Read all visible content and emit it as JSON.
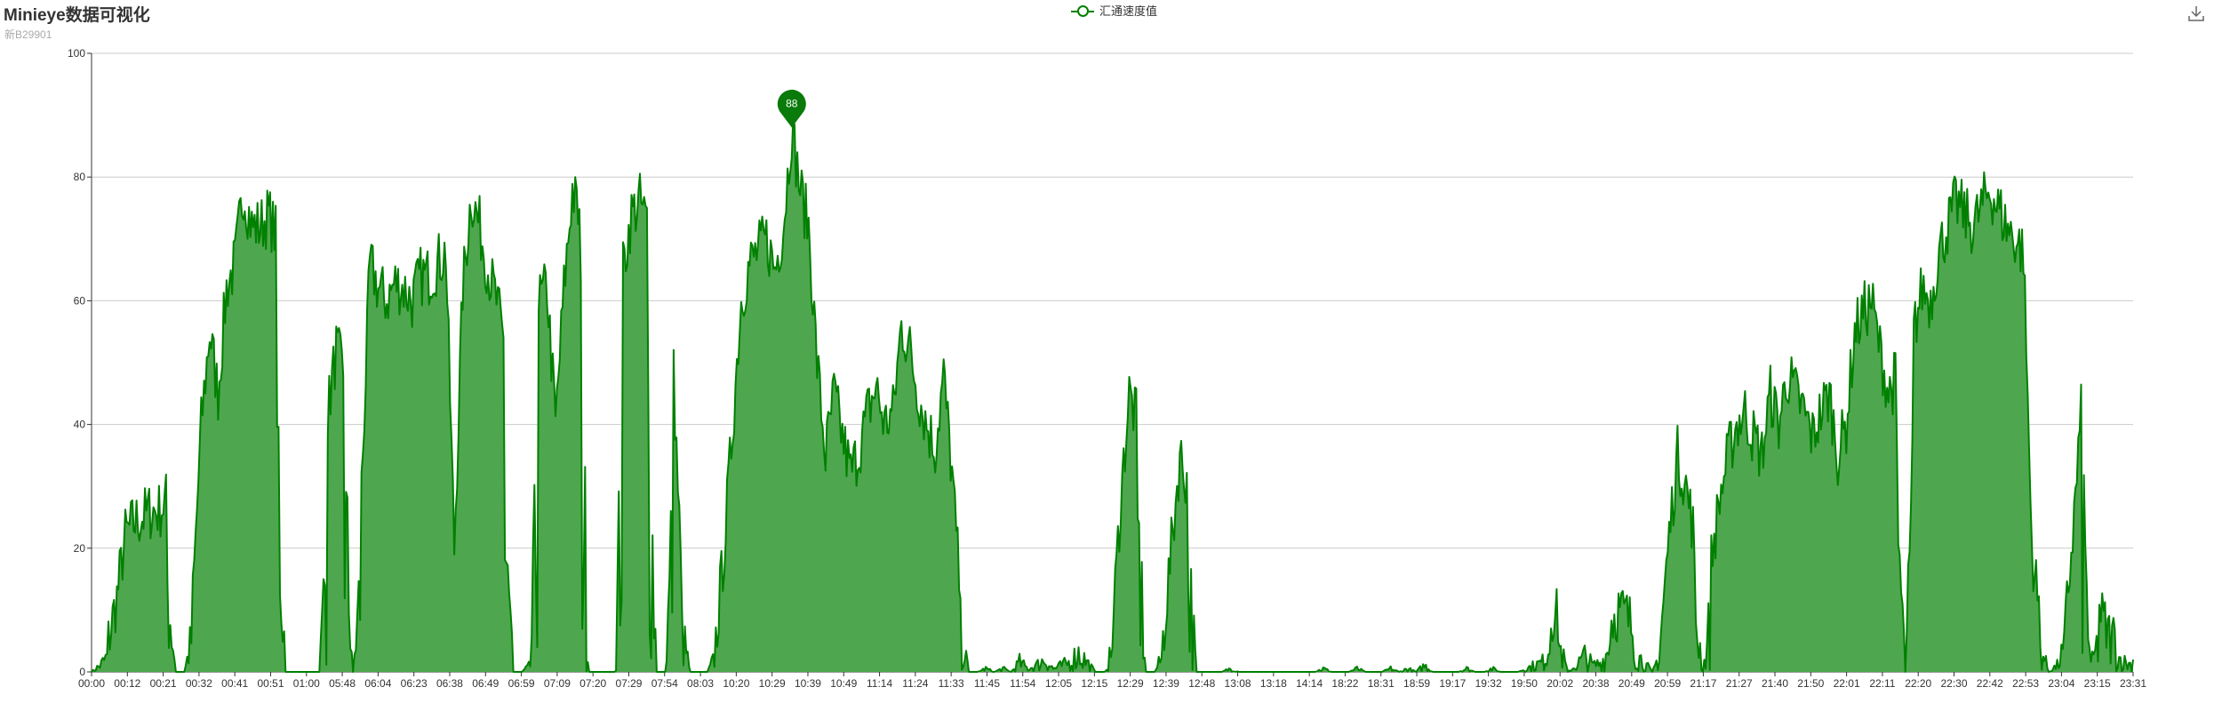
{
  "title": "Minieye数据可视化",
  "subtitle": "新B29901",
  "legend": {
    "label": "汇通速度值",
    "color": "#008000"
  },
  "toolbox": {
    "icon": "download-icon"
  },
  "chart_data": {
    "type": "area",
    "title": "Minieye数据可视化",
    "subtitle": "新B29901",
    "series": [
      {
        "name": "汇通速度值",
        "color": "#008000",
        "fill": "#4ea74e"
      }
    ],
    "ylim": [
      0,
      100
    ],
    "yticks": [
      0,
      20,
      40,
      60,
      80,
      100
    ],
    "xticks": [
      "00:00",
      "00:12",
      "00:21",
      "00:32",
      "00:41",
      "00:51",
      "01:00",
      "05:48",
      "06:04",
      "06:23",
      "06:38",
      "06:49",
      "06:59",
      "07:09",
      "07:20",
      "07:29",
      "07:54",
      "08:03",
      "10:20",
      "10:29",
      "10:39",
      "10:49",
      "11:14",
      "11:24",
      "11:33",
      "11:45",
      "11:54",
      "12:05",
      "12:15",
      "12:29",
      "12:39",
      "12:48",
      "13:08",
      "13:18",
      "14:14",
      "18:22",
      "18:31",
      "18:59",
      "19:17",
      "19:32",
      "19:50",
      "20:02",
      "20:38",
      "20:49",
      "20:59",
      "21:17",
      "21:27",
      "21:40",
      "21:50",
      "22:01",
      "22:11",
      "22:20",
      "22:30",
      "22:42",
      "22:53",
      "23:04",
      "23:15",
      "23:31"
    ],
    "profile": [
      [
        0,
        0
      ],
      [
        1,
        2
      ],
      [
        2,
        5
      ],
      [
        3,
        12
      ],
      [
        4,
        22
      ],
      [
        5,
        24
      ],
      [
        6,
        25
      ],
      [
        7,
        26
      ],
      [
        8,
        26
      ],
      [
        9,
        28
      ],
      [
        10,
        0
      ],
      [
        11,
        0
      ],
      [
        12,
        12
      ],
      [
        13,
        40
      ],
      [
        14,
        55
      ],
      [
        15,
        45
      ],
      [
        16,
        62
      ],
      [
        17,
        66
      ],
      [
        18,
        78
      ],
      [
        19,
        72
      ],
      [
        20,
        72
      ],
      [
        21,
        74
      ],
      [
        22,
        70
      ],
      [
        23,
        0
      ],
      [
        24,
        0
      ],
      [
        25,
        0
      ],
      [
        26,
        0
      ],
      [
        27,
        0
      ],
      [
        28,
        42
      ],
      [
        29,
        52
      ],
      [
        30,
        48
      ],
      [
        31,
        0
      ],
      [
        32,
        30
      ],
      [
        33,
        66
      ],
      [
        34,
        62
      ],
      [
        35,
        60
      ],
      [
        36,
        63
      ],
      [
        37,
        62
      ],
      [
        38,
        60
      ],
      [
        39,
        64
      ],
      [
        40,
        64
      ],
      [
        41,
        66
      ],
      [
        42,
        68
      ],
      [
        43,
        20
      ],
      [
        44,
        62
      ],
      [
        45,
        77
      ],
      [
        46,
        72
      ],
      [
        47,
        65
      ],
      [
        48,
        60
      ],
      [
        49,
        52
      ],
      [
        50,
        0
      ],
      [
        51,
        0
      ],
      [
        52,
        2
      ],
      [
        53,
        60
      ],
      [
        54,
        62
      ],
      [
        55,
        40
      ],
      [
        56,
        62
      ],
      [
        57,
        78
      ],
      [
        58,
        72
      ],
      [
        59,
        0
      ],
      [
        60,
        0
      ],
      [
        61,
        0
      ],
      [
        62,
        0
      ],
      [
        63,
        65
      ],
      [
        64,
        74
      ],
      [
        65,
        76
      ],
      [
        66,
        72
      ],
      [
        67,
        0
      ],
      [
        68,
        0
      ],
      [
        69,
        48
      ],
      [
        70,
        12
      ],
      [
        71,
        0
      ],
      [
        72,
        0
      ],
      [
        73,
        0
      ],
      [
        74,
        5
      ],
      [
        75,
        20
      ],
      [
        76,
        40
      ],
      [
        77,
        60
      ],
      [
        78,
        66
      ],
      [
        79,
        68
      ],
      [
        80,
        70
      ],
      [
        81,
        65
      ],
      [
        82,
        72
      ],
      [
        83,
        88
      ],
      [
        84,
        78
      ],
      [
        85,
        72
      ],
      [
        86,
        50
      ],
      [
        87,
        35
      ],
      [
        88,
        45
      ],
      [
        89,
        38
      ],
      [
        90,
        32
      ],
      [
        91,
        36
      ],
      [
        92,
        42
      ],
      [
        93,
        46
      ],
      [
        94,
        40
      ],
      [
        95,
        42
      ],
      [
        96,
        56
      ],
      [
        97,
        52
      ],
      [
        98,
        45
      ],
      [
        99,
        40
      ],
      [
        100,
        36
      ],
      [
        101,
        48
      ],
      [
        102,
        32
      ],
      [
        103,
        12
      ],
      [
        104,
        0
      ],
      [
        105,
        0
      ],
      [
        106,
        1
      ],
      [
        107,
        0
      ],
      [
        108,
        1
      ],
      [
        109,
        0
      ],
      [
        110,
        3
      ],
      [
        111,
        1
      ],
      [
        112,
        2
      ],
      [
        113,
        4
      ],
      [
        114,
        1
      ],
      [
        115,
        2
      ],
      [
        116,
        3
      ],
      [
        117,
        6
      ],
      [
        118,
        3
      ],
      [
        119,
        0
      ],
      [
        120,
        0
      ],
      [
        121,
        6
      ],
      [
        122,
        28
      ],
      [
        123,
        45
      ],
      [
        124,
        40
      ],
      [
        125,
        0
      ],
      [
        126,
        0
      ],
      [
        127,
        5
      ],
      [
        128,
        20
      ],
      [
        129,
        35
      ],
      [
        130,
        30
      ],
      [
        131,
        0
      ],
      [
        132,
        0
      ],
      [
        133,
        0
      ],
      [
        134,
        0
      ],
      [
        135,
        1
      ],
      [
        136,
        0
      ],
      [
        137,
        0
      ],
      [
        138,
        0
      ],
      [
        139,
        0
      ],
      [
        140,
        0
      ],
      [
        141,
        0
      ],
      [
        142,
        0
      ],
      [
        143,
        0
      ],
      [
        144,
        0
      ],
      [
        145,
        0
      ],
      [
        146,
        1
      ],
      [
        147,
        0
      ],
      [
        148,
        0
      ],
      [
        149,
        0
      ],
      [
        150,
        1
      ],
      [
        151,
        0
      ],
      [
        152,
        0
      ],
      [
        153,
        0
      ],
      [
        154,
        1
      ],
      [
        155,
        0
      ],
      [
        156,
        1
      ],
      [
        157,
        0
      ],
      [
        158,
        2
      ],
      [
        159,
        0
      ],
      [
        160,
        0
      ],
      [
        161,
        0
      ],
      [
        162,
        0
      ],
      [
        163,
        1
      ],
      [
        164,
        0
      ],
      [
        165,
        0
      ],
      [
        166,
        1
      ],
      [
        167,
        0
      ],
      [
        168,
        0
      ],
      [
        169,
        0
      ],
      [
        170,
        1
      ],
      [
        171,
        2
      ],
      [
        172,
        3
      ],
      [
        173,
        10
      ],
      [
        174,
        8
      ],
      [
        175,
        0
      ],
      [
        176,
        2
      ],
      [
        177,
        5
      ],
      [
        178,
        2
      ],
      [
        179,
        3
      ],
      [
        180,
        8
      ],
      [
        181,
        10
      ],
      [
        182,
        9
      ],
      [
        183,
        6
      ],
      [
        184,
        3
      ],
      [
        185,
        0
      ],
      [
        186,
        6
      ],
      [
        187,
        22
      ],
      [
        188,
        35
      ],
      [
        189,
        30
      ],
      [
        190,
        22
      ],
      [
        191,
        0
      ],
      [
        192,
        18
      ],
      [
        193,
        28
      ],
      [
        194,
        35
      ],
      [
        195,
        40
      ],
      [
        196,
        42
      ],
      [
        197,
        38
      ],
      [
        198,
        35
      ],
      [
        199,
        45
      ],
      [
        200,
        40
      ],
      [
        201,
        48
      ],
      [
        202,
        45
      ],
      [
        203,
        42
      ],
      [
        204,
        38
      ],
      [
        205,
        42
      ],
      [
        206,
        45
      ],
      [
        207,
        35
      ],
      [
        208,
        40
      ],
      [
        209,
        55
      ],
      [
        210,
        58
      ],
      [
        211,
        60
      ],
      [
        212,
        52
      ],
      [
        213,
        45
      ],
      [
        214,
        48
      ],
      [
        215,
        0
      ],
      [
        216,
        55
      ],
      [
        217,
        62
      ],
      [
        218,
        60
      ],
      [
        219,
        68
      ],
      [
        220,
        72
      ],
      [
        221,
        76
      ],
      [
        222,
        74
      ],
      [
        223,
        72
      ],
      [
        224,
        75
      ],
      [
        225,
        78
      ],
      [
        226,
        75
      ],
      [
        227,
        72
      ],
      [
        228,
        70
      ],
      [
        229,
        68
      ],
      [
        230,
        20
      ],
      [
        231,
        8
      ],
      [
        232,
        0
      ],
      [
        233,
        2
      ],
      [
        234,
        8
      ],
      [
        235,
        25
      ],
      [
        236,
        45
      ],
      [
        237,
        2
      ],
      [
        238,
        10
      ],
      [
        239,
        6
      ],
      [
        240,
        5
      ],
      [
        241,
        3
      ],
      [
        242,
        2
      ]
    ],
    "annotations": [
      {
        "label": "88",
        "type": "max-pin",
        "value": 88
      }
    ]
  }
}
